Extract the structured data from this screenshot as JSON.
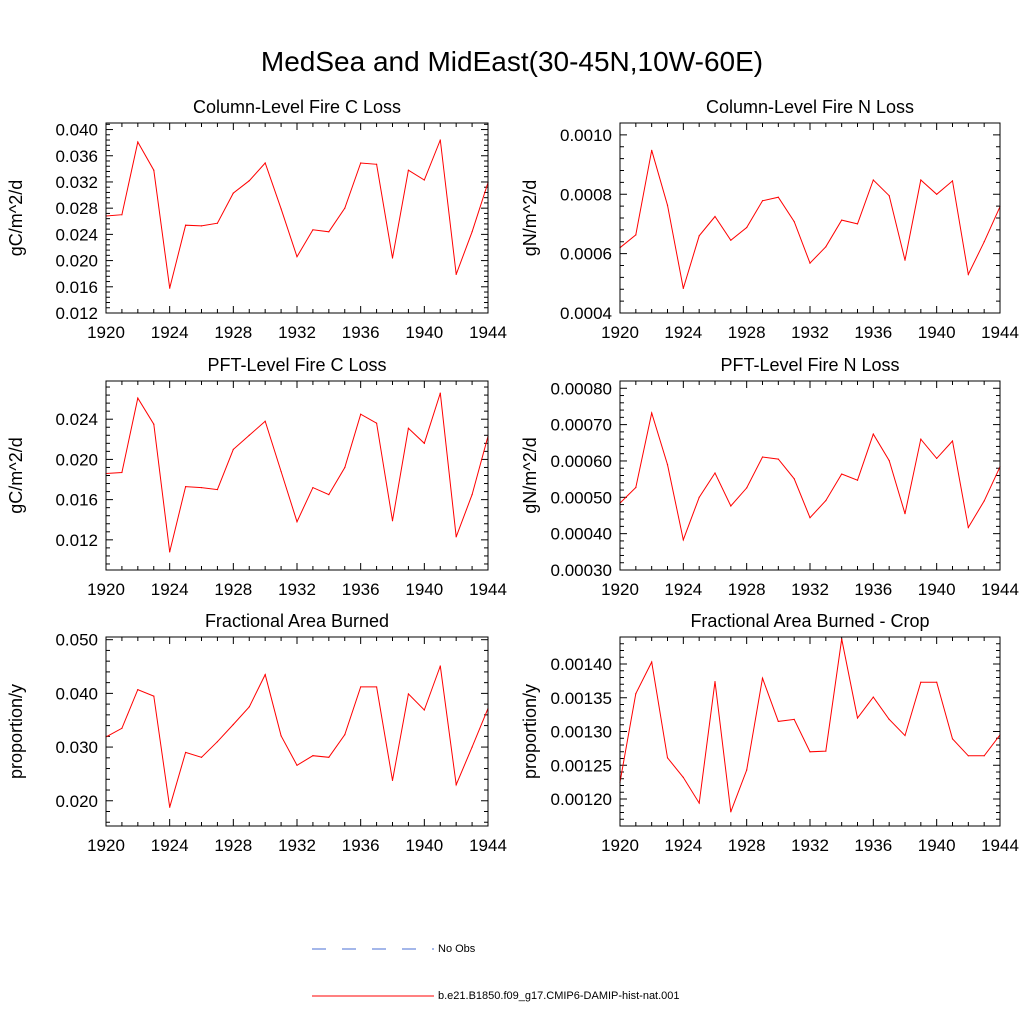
{
  "title": "MedSea and MidEast(30-45N,10W-60E)",
  "colors": {
    "model": "#ff0000",
    "obs": "#4a6fd6",
    "axis": "#000000"
  },
  "legend": [
    {
      "label": "No Obs",
      "style": "dashed",
      "color": "#4a6fd6"
    },
    {
      "label": "b.e21.B1850.f09_g17.CMIP6-DAMIP-hist-nat.001",
      "style": "solid",
      "color": "#ff0000"
    }
  ],
  "chart_data": [
    {
      "type": "line",
      "title": "Column-Level Fire C Loss",
      "ylabel": "gC/m^2/d",
      "xlim": [
        1920,
        1944
      ],
      "ylim": [
        0.012,
        0.041
      ],
      "xticks": [
        "1920",
        "1924",
        "1928",
        "1932",
        "1936",
        "1940",
        "1944"
      ],
      "yticks": [
        "0.012",
        "0.016",
        "0.020",
        "0.024",
        "0.028",
        "0.032",
        "0.036",
        "0.040"
      ],
      "x": [
        1920,
        1921,
        1922,
        1923,
        1924,
        1925,
        1926,
        1927,
        1928,
        1929,
        1930,
        1931,
        1932,
        1933,
        1934,
        1935,
        1936,
        1937,
        1938,
        1939,
        1940,
        1941,
        1942,
        1943,
        1944
      ],
      "series": [
        {
          "values": [
            0.0268,
            0.027,
            0.0381,
            0.0338,
            0.0158,
            0.0254,
            0.0253,
            0.0257,
            0.0303,
            0.0322,
            0.0349,
            0.0279,
            0.0206,
            0.0247,
            0.0244,
            0.028,
            0.0349,
            0.0347,
            0.0204,
            0.0338,
            0.0323,
            0.0384,
            0.0179,
            0.0244,
            0.0319
          ]
        }
      ]
    },
    {
      "type": "line",
      "title": "Column-Level Fire N Loss",
      "ylabel": "gN/m^2/d",
      "xlim": [
        1920,
        1944
      ],
      "ylim": [
        0.0004,
        0.00104
      ],
      "xticks": [
        "1920",
        "1924",
        "1928",
        "1932",
        "1936",
        "1940",
        "1944"
      ],
      "yticks": [
        "0.0004",
        "0.0006",
        "0.0008",
        "0.0010"
      ],
      "x": [
        1920,
        1921,
        1922,
        1923,
        1924,
        1925,
        1926,
        1927,
        1928,
        1929,
        1930,
        1931,
        1932,
        1933,
        1934,
        1935,
        1936,
        1937,
        1938,
        1939,
        1940,
        1941,
        1942,
        1943,
        1944
      ],
      "series": [
        {
          "values": [
            0.00062,
            0.000663,
            0.000948,
            0.000763,
            0.000483,
            0.00066,
            0.000725,
            0.000645,
            0.000688,
            0.000778,
            0.00079,
            0.000708,
            0.000568,
            0.000623,
            0.000713,
            0.0007,
            0.000848,
            0.000795,
            0.000578,
            0.000848,
            0.0008,
            0.000845,
            0.00053,
            0.00064,
            0.000758
          ]
        }
      ]
    },
    {
      "type": "line",
      "title": "PFT-Level Fire C Loss",
      "ylabel": "gC/m^2/d",
      "xlim": [
        1920,
        1944
      ],
      "ylim": [
        0.009,
        0.0278
      ],
      "xticks": [
        "1920",
        "1924",
        "1928",
        "1932",
        "1936",
        "1940",
        "1944"
      ],
      "yticks": [
        "0.012",
        "0.016",
        "0.020",
        "0.024"
      ],
      "x": [
        1920,
        1921,
        1922,
        1923,
        1924,
        1925,
        1926,
        1927,
        1928,
        1929,
        1930,
        1931,
        1932,
        1933,
        1934,
        1935,
        1936,
        1937,
        1938,
        1939,
        1940,
        1941,
        1942,
        1943,
        1944
      ],
      "series": [
        {
          "values": [
            0.0186,
            0.0187,
            0.0261,
            0.0235,
            0.0108,
            0.0173,
            0.0172,
            0.017,
            0.021,
            0.0224,
            0.0238,
            0.0188,
            0.0138,
            0.0172,
            0.0165,
            0.0192,
            0.0245,
            0.0236,
            0.0139,
            0.0231,
            0.0216,
            0.0266,
            0.0123,
            0.0165,
            0.0223
          ]
        }
      ]
    },
    {
      "type": "line",
      "title": "PFT-Level Fire N Loss",
      "ylabel": "gN/m^2/d",
      "xlim": [
        1920,
        1944
      ],
      "ylim": [
        0.0003,
        0.00082
      ],
      "xticks": [
        "1920",
        "1924",
        "1928",
        "1932",
        "1936",
        "1940",
        "1944"
      ],
      "yticks": [
        "0.00030",
        "0.00040",
        "0.00050",
        "0.00060",
        "0.00070",
        "0.00080"
      ],
      "x": [
        1920,
        1921,
        1922,
        1923,
        1924,
        1925,
        1926,
        1927,
        1928,
        1929,
        1930,
        1931,
        1932,
        1933,
        1934,
        1935,
        1936,
        1937,
        1938,
        1939,
        1940,
        1941,
        1942,
        1943,
        1944
      ],
      "series": [
        {
          "values": [
            0.000484,
            0.000527,
            0.000732,
            0.00059,
            0.000383,
            0.0005,
            0.000567,
            0.000476,
            0.000526,
            0.000611,
            0.000605,
            0.000551,
            0.000444,
            0.000491,
            0.000564,
            0.000547,
            0.000674,
            0.000601,
            0.000455,
            0.00066,
            0.000607,
            0.000655,
            0.000417,
            0.00049,
            0.000584
          ]
        }
      ]
    },
    {
      "type": "line",
      "title": "Fractional Area Burned",
      "ylabel": "proportion/y",
      "xlim": [
        1920,
        1944
      ],
      "ylim": [
        0.0153,
        0.0505
      ],
      "xticks": [
        "1920",
        "1924",
        "1928",
        "1932",
        "1936",
        "1940",
        "1944"
      ],
      "yticks": [
        "0.020",
        "0.030",
        "0.040",
        "0.050"
      ],
      "x": [
        1920,
        1921,
        1922,
        1923,
        1924,
        1925,
        1926,
        1927,
        1928,
        1929,
        1930,
        1931,
        1932,
        1933,
        1934,
        1935,
        1936,
        1937,
        1938,
        1939,
        1940,
        1941,
        1942,
        1943,
        1944
      ],
      "series": [
        {
          "values": [
            0.0319,
            0.0335,
            0.0407,
            0.0395,
            0.0188,
            0.029,
            0.0281,
            0.031,
            0.0342,
            0.0375,
            0.0435,
            0.0321,
            0.0266,
            0.0284,
            0.0281,
            0.0323,
            0.0412,
            0.0412,
            0.0238,
            0.0399,
            0.0369,
            0.0451,
            0.023,
            0.03,
            0.0372
          ]
        }
      ]
    },
    {
      "type": "line",
      "title": "Fractional Area Burned - Crop",
      "ylabel": "proportion/y",
      "xlim": [
        1920,
        1944
      ],
      "ylim": [
        0.00116,
        0.00144
      ],
      "xticks": [
        "1920",
        "1924",
        "1928",
        "1932",
        "1936",
        "1940",
        "1944"
      ],
      "yticks": [
        "0.00120",
        "0.00125",
        "0.00130",
        "0.00135",
        "0.00140"
      ],
      "x": [
        1920,
        1921,
        1922,
        1923,
        1924,
        1925,
        1926,
        1927,
        1928,
        1929,
        1930,
        1931,
        1932,
        1933,
        1934,
        1935,
        1936,
        1937,
        1938,
        1939,
        1940,
        1941,
        1942,
        1943,
        1944
      ],
      "series": [
        {
          "values": [
            0.001225,
            0.001356,
            0.001403,
            0.001261,
            0.001232,
            0.001194,
            0.001374,
            0.001181,
            0.001243,
            0.001379,
            0.001315,
            0.001318,
            0.00127,
            0.001271,
            0.001437,
            0.00132,
            0.001351,
            0.001318,
            0.001294,
            0.001373,
            0.001373,
            0.001289,
            0.001264,
            0.001264,
            0.001295
          ]
        }
      ]
    }
  ]
}
